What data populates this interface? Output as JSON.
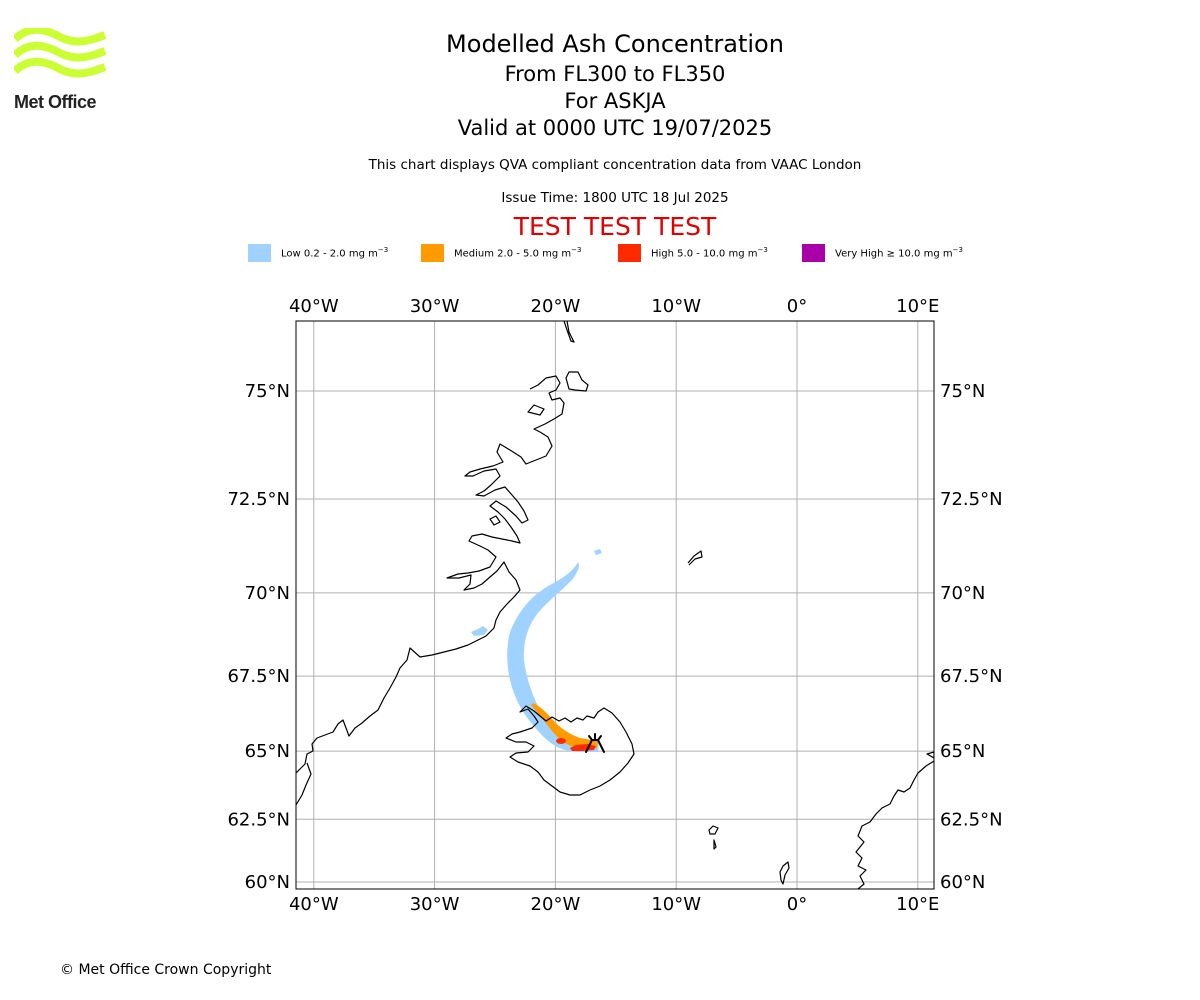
{
  "logo": {
    "text": "Met Office",
    "color": "#ccff33"
  },
  "header": {
    "title": "Modelled Ash Concentration",
    "levels": "From FL300 to FL350",
    "volcano": "For ASKJA",
    "valid": "Valid at 0000 UTC 19/07/2025",
    "description": "This chart displays QVA compliant concentration data from VAAC London",
    "issue_time": "Issue Time: 1800 UTC 18 Jul 2025",
    "test_banner": "TEST TEST TEST"
  },
  "legend": [
    {
      "label": "Low 0.2 - 2.0 mg m",
      "unit_exp": "−3",
      "color": "#a0d2ff"
    },
    {
      "label": "Medium 2.0 - 5.0 mg m",
      "unit_exp": "−3",
      "color": "#ff9a00"
    },
    {
      "label": "High 5.0 - 10.0 mg m",
      "unit_exp": "−3",
      "color": "#ff2a00"
    },
    {
      "label": "Very High  ≥  10.0 mg m",
      "unit_exp": "−3",
      "color": "#aa00aa"
    }
  ],
  "map": {
    "lon_labels": [
      "40°W",
      "30°W",
      "20°W",
      "10°W",
      "0°",
      "10°E"
    ],
    "lon_values": [
      -40,
      -30,
      -20,
      -10,
      0,
      10
    ],
    "lat_labels": [
      "75°N",
      "72.5°N",
      "70°N",
      "67.5°N",
      "65°N",
      "62.5°N",
      "60°N"
    ],
    "lat_values": [
      75,
      72.5,
      70,
      67.5,
      65,
      62.5,
      60
    ],
    "volcano_name": "ASKJA",
    "volcano_position": {
      "lon": -16.75,
      "lat": 65.05
    }
  },
  "footer": {
    "copyright": "© Met Office Crown Copyright"
  }
}
